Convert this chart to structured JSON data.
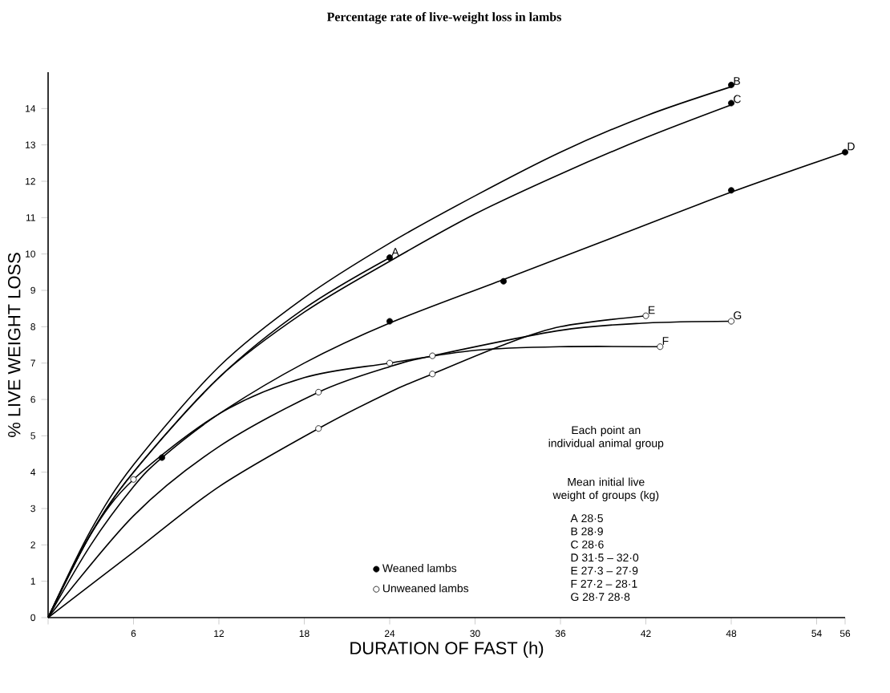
{
  "chart_data": {
    "type": "line",
    "title": "Percentage rate of live-weight loss in lambs",
    "xlabel": "DURATION OF FAST (h)",
    "ylabel": "% LIVE WEIGHT LOSS",
    "xlim": [
      0,
      56
    ],
    "ylim": [
      0,
      15
    ],
    "xticks": [
      {
        "value": 0,
        "label": null
      },
      6,
      12,
      18,
      24,
      30,
      36,
      42,
      48,
      54,
      56
    ],
    "yticks": [
      0,
      1,
      2,
      3,
      4,
      5,
      6,
      7,
      8,
      9,
      10,
      11,
      12,
      13,
      14
    ],
    "legend": "bottom",
    "series": [
      {
        "name": "A",
        "marker": "none",
        "color": "#000000",
        "x": [
          0,
          3,
          6,
          12,
          18,
          24
        ],
        "values": [
          0,
          2.3,
          4.0,
          6.6,
          8.5,
          9.9
        ]
      },
      {
        "name": "B",
        "marker": "none",
        "color": "#000000",
        "x": [
          0,
          3,
          6,
          12,
          18,
          24,
          30,
          36,
          42,
          48
        ],
        "values": [
          0,
          2.4,
          4.2,
          6.9,
          8.8,
          10.3,
          11.6,
          12.8,
          13.8,
          14.6
        ]
      },
      {
        "name": "C",
        "marker": "none",
        "color": "#000000",
        "x": [
          0,
          3,
          6,
          12,
          18,
          24,
          30,
          36,
          42,
          48
        ],
        "values": [
          0,
          2.3,
          4.0,
          6.6,
          8.4,
          9.8,
          11.1,
          12.2,
          13.2,
          14.1
        ]
      },
      {
        "name": "D",
        "marker": "none",
        "color": "#000000",
        "x": [
          0,
          3,
          6,
          8,
          12,
          18,
          24,
          32,
          40,
          48,
          56
        ],
        "values": [
          0,
          2.0,
          3.6,
          4.4,
          5.6,
          7.0,
          8.1,
          9.3,
          10.5,
          11.7,
          12.8
        ]
      },
      {
        "name": "E",
        "marker": "none",
        "color": "#000000",
        "x": [
          0,
          6,
          12,
          19,
          24,
          27,
          32,
          36,
          42
        ],
        "values": [
          0,
          1.8,
          3.6,
          5.2,
          6.2,
          6.7,
          7.5,
          8.0,
          8.3
        ]
      },
      {
        "name": "F",
        "marker": "none",
        "color": "#000000",
        "x": [
          0,
          3,
          6,
          12,
          18,
          24,
          30,
          36,
          43
        ],
        "values": [
          0,
          2.3,
          3.8,
          5.6,
          6.6,
          7.0,
          7.35,
          7.45,
          7.45
        ]
      },
      {
        "name": "G",
        "marker": "none",
        "color": "#000000",
        "x": [
          0,
          6,
          12,
          19,
          24,
          27,
          36,
          42,
          48
        ],
        "values": [
          0,
          2.8,
          4.7,
          6.2,
          6.9,
          7.2,
          7.9,
          8.1,
          8.15
        ]
      },
      {
        "name": "Weaned lambs",
        "type": "scatter",
        "marker": "circle",
        "color": "#000000",
        "x": [
          24,
          48,
          48,
          8,
          24,
          32,
          48,
          56
        ],
        "values": [
          9.9,
          14.65,
          14.15,
          4.4,
          8.15,
          9.25,
          11.75,
          12.8
        ]
      },
      {
        "name": "Unweaned lambs",
        "type": "scatter",
        "marker": "circle",
        "color": "#ffffff",
        "x": [
          6,
          19,
          19,
          24,
          27,
          27,
          42,
          43,
          48
        ],
        "values": [
          3.8,
          6.2,
          5.2,
          7.0,
          7.2,
          6.7,
          8.3,
          7.45,
          8.15
        ]
      }
    ],
    "annotations": [
      "Each point an individual animal group",
      "Mean initial live weight of groups (kg)",
      "A 28·5",
      "B 28·9",
      "C 28·6",
      "D 31·5 – 32·0",
      "E 27·3 – 27·9",
      "F 27·2 – 28·1",
      "G 28·7 28·8"
    ]
  }
}
